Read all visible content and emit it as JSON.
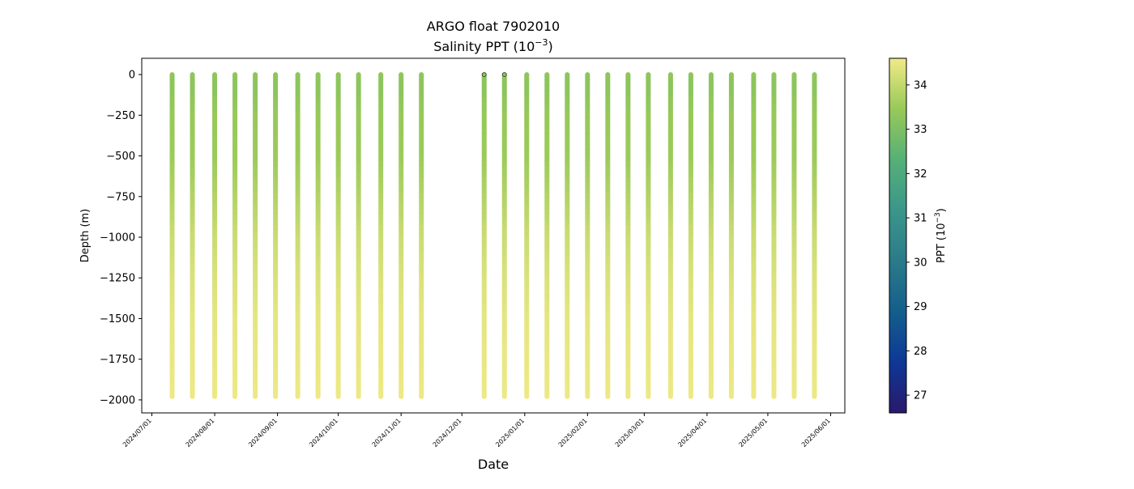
{
  "chart_data": {
    "type": "scatter",
    "title": "ARGO float 7902010",
    "subtitle": "Salinity PPT (10",
    "subtitle_exponent": "−3",
    "subtitle_close": ")",
    "xlabel": "Date",
    "ylabel": "Depth (m)",
    "xlim": [
      "2024-06-26",
      "2025-06-08"
    ],
    "ylim": [
      -2080,
      100
    ],
    "x_ticks": [
      "2024/07/01",
      "2024/08/01",
      "2024/09/01",
      "2024/10/01",
      "2024/11/01",
      "2024/12/01",
      "2025/01/01",
      "2025/02/01",
      "2025/03/01",
      "2025/04/01",
      "2025/05/01",
      "2025/06/01"
    ],
    "y_ticks": [
      0,
      -250,
      -500,
      -750,
      -1000,
      -1250,
      -1500,
      -1750,
      -2000
    ],
    "y_tick_labels": [
      "0",
      "−250",
      "−500",
      "−750",
      "−1000",
      "−1250",
      "−1500",
      "−1750",
      "−2000"
    ],
    "colormap": "haline",
    "colorbar": {
      "label": "PPT (10",
      "label_exponent": "−3",
      "label_close": ")",
      "range": [
        26.6,
        34.6
      ],
      "ticks": [
        27,
        28,
        29,
        30,
        31,
        32,
        33,
        34
      ],
      "colors": [
        "#2a186c",
        "#0e3896",
        "#145e8c",
        "#2a7b8a",
        "#3b968a",
        "#55b077",
        "#98c958",
        "#f1ea87"
      ]
    },
    "profile_dates": [
      "2024-07-11",
      "2024-07-21",
      "2024-08-01",
      "2024-08-11",
      "2024-08-21",
      "2024-08-31",
      "2024-09-11",
      "2024-09-21",
      "2024-10-01",
      "2024-10-11",
      "2024-10-22",
      "2024-11-01",
      "2024-11-11",
      "2024-12-12",
      "2024-12-22",
      "2025-01-02",
      "2025-01-12",
      "2025-01-22",
      "2025-02-01",
      "2025-02-11",
      "2025-02-21",
      "2025-03-03",
      "2025-03-14",
      "2025-03-24",
      "2025-04-03",
      "2025-04-13",
      "2025-04-24",
      "2025-05-04",
      "2025-05-14",
      "2025-05-24"
    ],
    "profile_max_depth": -1980,
    "salinity_profile": {
      "depth": [
        0,
        -100,
        -250,
        -500,
        -750,
        -1000,
        -1250,
        -1500,
        -1750,
        -1980
      ],
      "salinity": [
        33.3,
        33.25,
        33.45,
        33.5,
        33.8,
        34.1,
        34.3,
        34.45,
        34.5,
        34.55
      ]
    },
    "surface_outlier_dates": [
      "2024-12-12",
      "2024-12-22"
    ]
  }
}
